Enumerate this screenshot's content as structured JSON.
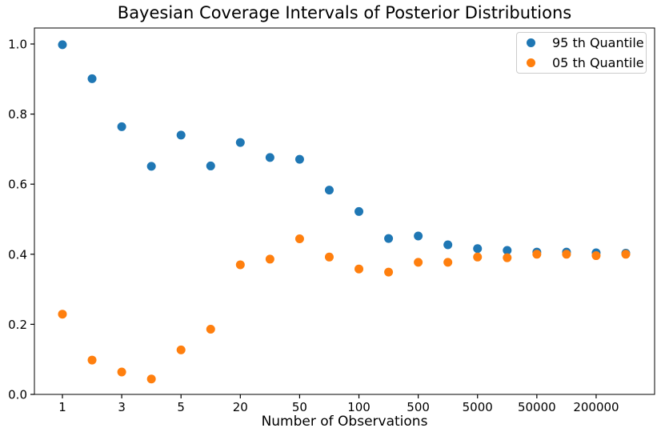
{
  "chart_data": {
    "type": "scatter",
    "title": "Bayesian Coverage Intervals of Posterior Distributions",
    "xlabel": "Number of Observations",
    "ylabel": "",
    "grid": false,
    "legend_position": "upper right",
    "marker": "circle",
    "axis_color": "#000000",
    "x_tick_labels": [
      "1",
      "3",
      "5",
      "20",
      "50",
      "100",
      "500",
      "5000",
      "50000",
      "200000"
    ],
    "x_tick_point_indices": [
      0,
      2,
      4,
      6,
      8,
      10,
      12,
      14,
      16,
      18
    ],
    "y_tick_labels": [
      "0.0",
      "0.2",
      "0.4",
      "0.6",
      "0.8",
      "1.0"
    ],
    "y_tick_values": [
      0.0,
      0.2,
      0.4,
      0.6,
      0.8,
      1.0
    ],
    "ylim": [
      -0.005,
      1.045
    ],
    "num_points_per_series": 20,
    "series": [
      {
        "name": "95 th Quantile",
        "color": "#1f77b4",
        "values": [
          0.998,
          0.901,
          0.764,
          0.651,
          0.74,
          0.652,
          0.719,
          0.676,
          0.671,
          0.583,
          0.522,
          0.445,
          0.452,
          0.427,
          0.416,
          0.411,
          0.406,
          0.406,
          0.404,
          0.403
        ]
      },
      {
        "name": "05 th Quantile",
        "color": "#ff7f0e",
        "values": [
          0.229,
          0.098,
          0.064,
          0.044,
          0.127,
          0.186,
          0.37,
          0.386,
          0.444,
          0.392,
          0.358,
          0.349,
          0.377,
          0.377,
          0.392,
          0.39,
          0.4,
          0.4,
          0.396,
          0.4
        ]
      }
    ]
  }
}
